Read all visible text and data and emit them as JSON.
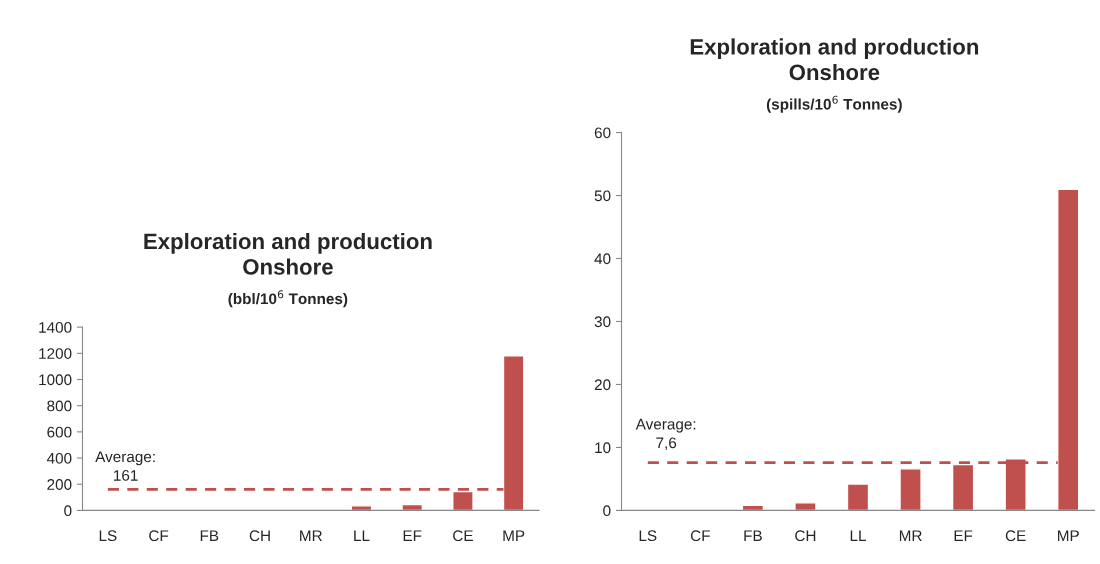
{
  "chart_data": [
    {
      "type": "bar",
      "title": "Exploration and production\nOnshore",
      "subtitle": "(bbl/10$^{6}$ Tonnes)",
      "categories": [
        "LS",
        "CF",
        "FB",
        "CH",
        "MR",
        "LL",
        "EF",
        "CE",
        "MP"
      ],
      "values": [
        null,
        null,
        2,
        2,
        2,
        35,
        45,
        145,
        1180
      ],
      "color": "#c0504d",
      "ylim": [
        0,
        1400
      ],
      "yticks": [
        0,
        200,
        400,
        600,
        800,
        1000,
        1200,
        1400
      ],
      "grid": false,
      "ref_lines": [
        {
          "axis": "y",
          "value": 161,
          "label": "Average:\n161",
          "color": "#c0504d",
          "line_style": "dashed"
        }
      ]
    },
    {
      "type": "bar",
      "title": "Exploration and production\nOnshore",
      "subtitle": "(spills/10$^{6}$ Tonnes)",
      "categories": [
        "LS",
        "CF",
        "FB",
        "CH",
        "LL",
        "MR",
        "EF",
        "CE",
        "MP"
      ],
      "values": [
        null,
        null,
        0.8,
        1.2,
        4.2,
        6.6,
        7.3,
        8.2,
        51
      ],
      "color": "#c0504d",
      "ylim": [
        0,
        60
      ],
      "yticks": [
        0,
        10,
        20,
        30,
        40,
        50,
        60
      ],
      "grid": false,
      "ref_lines": [
        {
          "axis": "y",
          "value": 7.6,
          "label": "Average:\n7,6",
          "color": "#c0504d",
          "line_style": "dashed"
        }
      ]
    }
  ]
}
